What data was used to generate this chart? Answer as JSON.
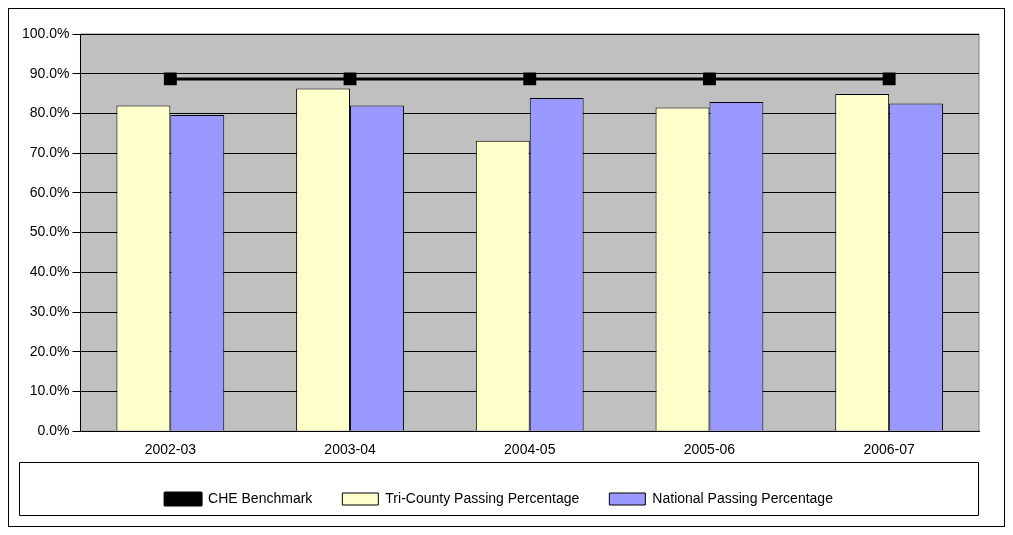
{
  "chart_data": {
    "type": "bar",
    "categories": [
      "2002-03",
      "2003-04",
      "2004-05",
      "2005-06",
      "2006-07"
    ],
    "series": [
      {
        "name": "Tri-County Passing Percentage",
        "color": "#ffffcc",
        "values": [
          82.0,
          86.3,
          73.1,
          81.5,
          84.9
        ]
      },
      {
        "name": "National Passing Percentage",
        "color": "#9999ff",
        "values": [
          79.6,
          82.0,
          83.9,
          82.9,
          82.5
        ]
      },
      {
        "name": "CHE Benchmark",
        "type": "line",
        "color": "#000000",
        "marker": "square",
        "values": [
          88.7,
          88.7,
          88.7,
          88.7,
          88.7
        ]
      }
    ],
    "ylim": [
      0,
      100
    ],
    "yticks": [
      {
        "value": 0,
        "label": "0.0%"
      },
      {
        "value": 10,
        "label": "10.0%"
      },
      {
        "value": 20,
        "label": "20.0%"
      },
      {
        "value": 30,
        "label": "30.0%"
      },
      {
        "value": 40,
        "label": "40.0%"
      },
      {
        "value": 50,
        "label": "50.0%"
      },
      {
        "value": 60,
        "label": "60.0%"
      },
      {
        "value": 70,
        "label": "70.0%"
      },
      {
        "value": 80,
        "label": "80.0%"
      },
      {
        "value": 90,
        "label": "90.0%"
      },
      {
        "value": 100,
        "label": "100.0%"
      }
    ],
    "grid": "y",
    "legend": "bottom"
  }
}
